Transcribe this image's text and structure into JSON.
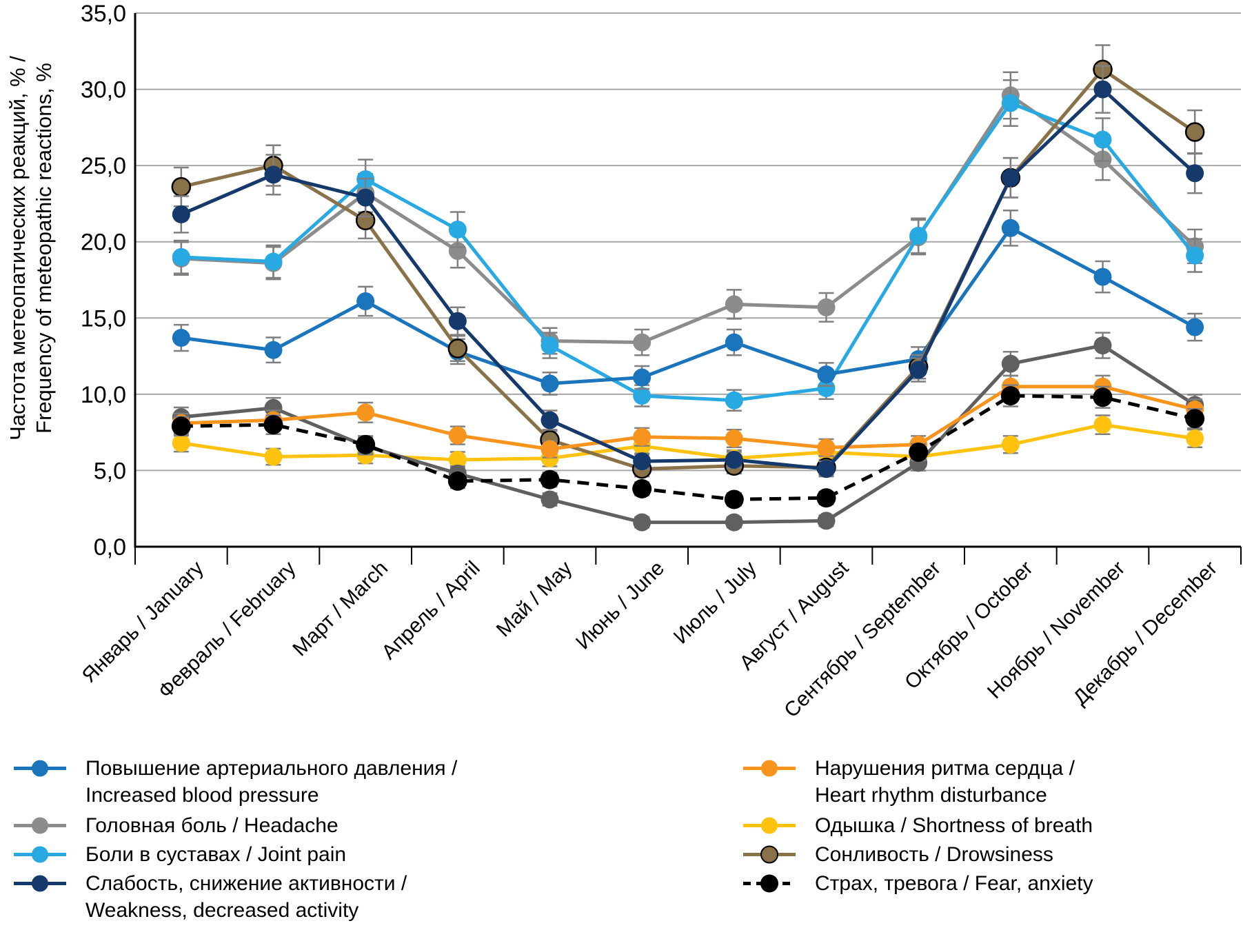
{
  "figure": {
    "background": "#ffffff",
    "axis_color": "#000000",
    "gridline_color": "#a6a6a6",
    "error_bar_color": "#7f7f7f",
    "error_bar_rule_note": "whiskers read from figure, approx ±(0.28 + 0.042·value), clamped 0.3–1.6"
  },
  "chart_data": {
    "type": "line",
    "title": "",
    "ylabel_line1": "Частота метеопатических реакций, % /",
    "ylabel_line2": "Frequency of meteopathic reactions, %",
    "xlabel": "",
    "ylim": [
      0,
      35
    ],
    "ytick_step": 5,
    "ytick_labels": [
      "0,0",
      "5,0",
      "10,0",
      "15,0",
      "20,0",
      "25,0",
      "30,0",
      "35,0"
    ],
    "grid": "horizontal",
    "legend_position": "bottom, two columns",
    "categories": [
      "Январь / January",
      "Февраль / February",
      "Март / March",
      "Апрель / April",
      "Май / May",
      "Июнь / June",
      "Июль / July",
      "Август / August",
      "Сентябрь / September",
      "Октябрь / October",
      "Ноябрь / November",
      "Декабрь / December"
    ],
    "series": [
      {
        "id": "increased-blood-pressure",
        "name": "Повышение артериального давления / Increased blood pressure",
        "color": "#1B75BC",
        "dashed": false,
        "values": [
          13.7,
          12.9,
          16.1,
          12.8,
          10.7,
          11.1,
          13.4,
          11.3,
          12.3,
          20.9,
          17.7,
          14.4
        ]
      },
      {
        "id": "headache",
        "name": "Головная боль / Headache",
        "color": "#8C8C8C",
        "dashed": false,
        "values": [
          18.9,
          18.6,
          23.2,
          19.4,
          13.5,
          13.4,
          15.9,
          15.7,
          20.3,
          29.6,
          25.4,
          19.7
        ]
      },
      {
        "id": "joint-pain",
        "name": "Боли в суставах / Joint pain",
        "color": "#29A9E1",
        "dashed": false,
        "values": [
          19.0,
          18.7,
          24.1,
          20.8,
          13.2,
          9.9,
          9.6,
          10.4,
          20.4,
          29.1,
          26.7,
          19.1
        ]
      },
      {
        "id": "weakness",
        "name": "Слабость, снижение активности / Weakness, decreased activity",
        "color": "#15396B",
        "dashed": false,
        "values": [
          21.8,
          24.4,
          22.9,
          14.8,
          8.3,
          5.6,
          5.7,
          5.1,
          11.6,
          24.2,
          30.0,
          24.5
        ]
      },
      {
        "id": "heart-rhythm",
        "name": "Нарушения ритма сердца / Heart rhythm disturbance",
        "color": "#F7941E",
        "dashed": false,
        "values": [
          8.1,
          8.3,
          8.8,
          7.3,
          6.4,
          7.2,
          7.1,
          6.5,
          6.7,
          10.5,
          10.5,
          9.0
        ]
      },
      {
        "id": "shortness-of-breath",
        "name": "Одышка / Shortness of breath",
        "color": "#FFC20E",
        "dashed": false,
        "values": [
          6.8,
          5.9,
          6.0,
          5.7,
          5.8,
          6.6,
          5.8,
          6.2,
          5.9,
          6.7,
          8.0,
          7.1
        ]
      },
      {
        "id": "drowsiness",
        "name": "Сонливость / Drowsiness",
        "color": "#8A7248",
        "marker_stroke": "#000000",
        "dashed": false,
        "values": [
          23.6,
          25.0,
          21.4,
          13.0,
          7.0,
          5.1,
          5.3,
          5.2,
          11.8,
          24.2,
          31.3,
          27.2
        ]
      },
      {
        "id": "fear-anxiety",
        "name": "Страх, тревога / Fear, anxiety",
        "color": "#000000",
        "dashed": true,
        "values": [
          7.9,
          8.0,
          6.7,
          4.3,
          4.4,
          3.8,
          3.1,
          3.2,
          6.2,
          9.9,
          9.8,
          8.4
        ]
      },
      {
        "id": "unlabeled-dark-gray",
        "name": "(unlabeled dark gray series — no legend entry visible in figure)",
        "color": "#606060",
        "dashed": false,
        "values": [
          8.5,
          9.1,
          6.6,
          4.8,
          3.1,
          1.6,
          1.6,
          1.7,
          5.5,
          12.0,
          13.2,
          9.3
        ]
      }
    ],
    "draw_order": [
      "headache",
      "joint-pain",
      "increased-blood-pressure",
      "shortness-of-breath",
      "drowsiness",
      "unlabeled-dark-gray",
      "heart-rhythm",
      "weakness",
      "fear-anxiety"
    ],
    "legend": {
      "left_column": [
        {
          "series": "increased-blood-pressure",
          "lines": [
            "Повышение артериального давления /",
            "Increased blood pressure"
          ]
        },
        {
          "series": "headache",
          "lines": [
            "Головная боль / Headache"
          ]
        },
        {
          "series": "joint-pain",
          "lines": [
            "Боли в суставах / Joint pain"
          ]
        },
        {
          "series": "weakness",
          "lines": [
            "Слабость, снижение активности /",
            "Weakness, decreased activity"
          ]
        }
      ],
      "right_column": [
        {
          "series": "heart-rhythm",
          "lines": [
            "Нарушения ритма сердца /",
            "Heart rhythm disturbance"
          ]
        },
        {
          "series": "shortness-of-breath",
          "lines": [
            "Одышка / Shortness of breath"
          ]
        },
        {
          "series": "drowsiness",
          "lines": [
            "Сонливость / Drowsiness"
          ]
        },
        {
          "series": "fear-anxiety",
          "lines": [
            "Страх, тревога / Fear, anxiety"
          ]
        }
      ]
    }
  }
}
